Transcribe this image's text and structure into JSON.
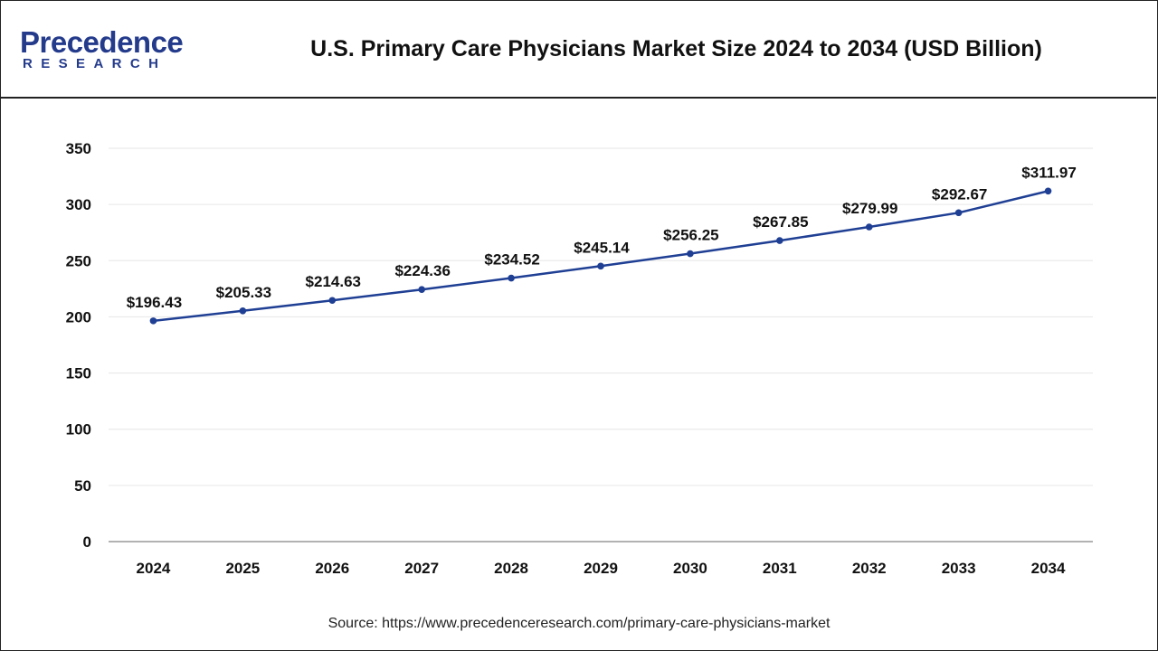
{
  "header": {
    "logo_word": "Precedence",
    "logo_sub": "RESEARCH",
    "title": "U.S. Primary Care Physicians Market Size 2024 to 2034 (USD Billion)"
  },
  "source": "Source: https://www.precedenceresearch.com/primary-care-physicians-market",
  "colors": {
    "line": "#1f3f94",
    "grid": "#e6e6e6",
    "axis": "#999999",
    "text": "#111111"
  },
  "chart_data": {
    "type": "line",
    "title": "U.S. Primary Care Physicians Market Size 2024 to 2034 (USD Billion)",
    "xlabel": "",
    "ylabel": "",
    "categories": [
      "2024",
      "2025",
      "2026",
      "2027",
      "2028",
      "2029",
      "2030",
      "2031",
      "2032",
      "2033",
      "2034"
    ],
    "values": [
      196.43,
      205.33,
      214.63,
      224.36,
      234.52,
      245.14,
      256.25,
      267.85,
      279.99,
      292.67,
      311.97
    ],
    "data_labels": [
      "$196.43",
      "$205.33",
      "$214.63",
      "$224.36",
      "$234.52",
      "$245.14",
      "$256.25",
      "$267.85",
      "$279.99",
      "$292.67",
      "$311.97"
    ],
    "ylim": [
      0,
      350
    ],
    "yticks": [
      0,
      50,
      100,
      150,
      200,
      250,
      300,
      350
    ],
    "grid": true,
    "legend": "none"
  }
}
